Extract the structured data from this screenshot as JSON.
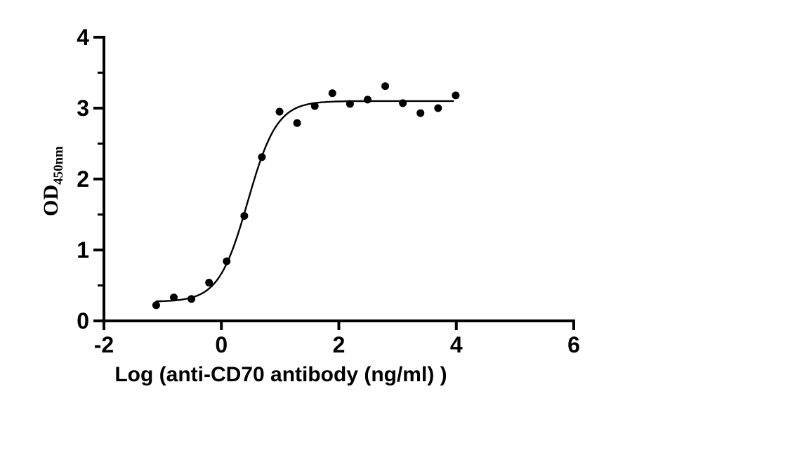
{
  "figure": {
    "background_color": "#ffffff",
    "ink_color": "#000000"
  },
  "chart_data": {
    "type": "scatter",
    "title": "",
    "xlabel": "Log（anti-CD70 antibody（ng/ml））",
    "ylabel": "OD",
    "ylabel_subscript": "450nm",
    "xlim": [
      -2,
      6
    ],
    "ylim": [
      0,
      4
    ],
    "x_ticks": [
      -2,
      0,
      2,
      4,
      6
    ],
    "y_ticks": [
      0,
      1,
      2,
      3,
      4
    ],
    "y_minor_ticks": [
      0.5,
      1.5,
      2.5,
      3.5
    ],
    "grid": false,
    "legend": "none",
    "marker": {
      "shape": "circle",
      "color": "#000000",
      "radius_px": 5.5
    },
    "points": [
      {
        "x": -1.11,
        "y": 0.22
      },
      {
        "x": -0.81,
        "y": 0.33
      },
      {
        "x": -0.51,
        "y": 0.31
      },
      {
        "x": -0.21,
        "y": 0.54
      },
      {
        "x": 0.09,
        "y": 0.84
      },
      {
        "x": 0.39,
        "y": 1.48
      },
      {
        "x": 0.69,
        "y": 2.31
      },
      {
        "x": 0.99,
        "y": 2.95
      },
      {
        "x": 1.29,
        "y": 2.79
      },
      {
        "x": 1.59,
        "y": 3.03
      },
      {
        "x": 1.89,
        "y": 3.21
      },
      {
        "x": 2.19,
        "y": 3.06
      },
      {
        "x": 2.49,
        "y": 3.12
      },
      {
        "x": 2.79,
        "y": 3.31
      },
      {
        "x": 3.09,
        "y": 3.07
      },
      {
        "x": 3.39,
        "y": 2.93
      },
      {
        "x": 3.69,
        "y": 3.0
      },
      {
        "x": 3.99,
        "y": 3.18
      }
    ],
    "fit_curve": {
      "model": "four_parameter_logistic",
      "bottom": 0.27,
      "top": 3.1,
      "log_ec50": 0.45,
      "hill_slope": 1.75,
      "x_start": -1.12,
      "x_end": 3.97,
      "color": "#000000"
    }
  }
}
